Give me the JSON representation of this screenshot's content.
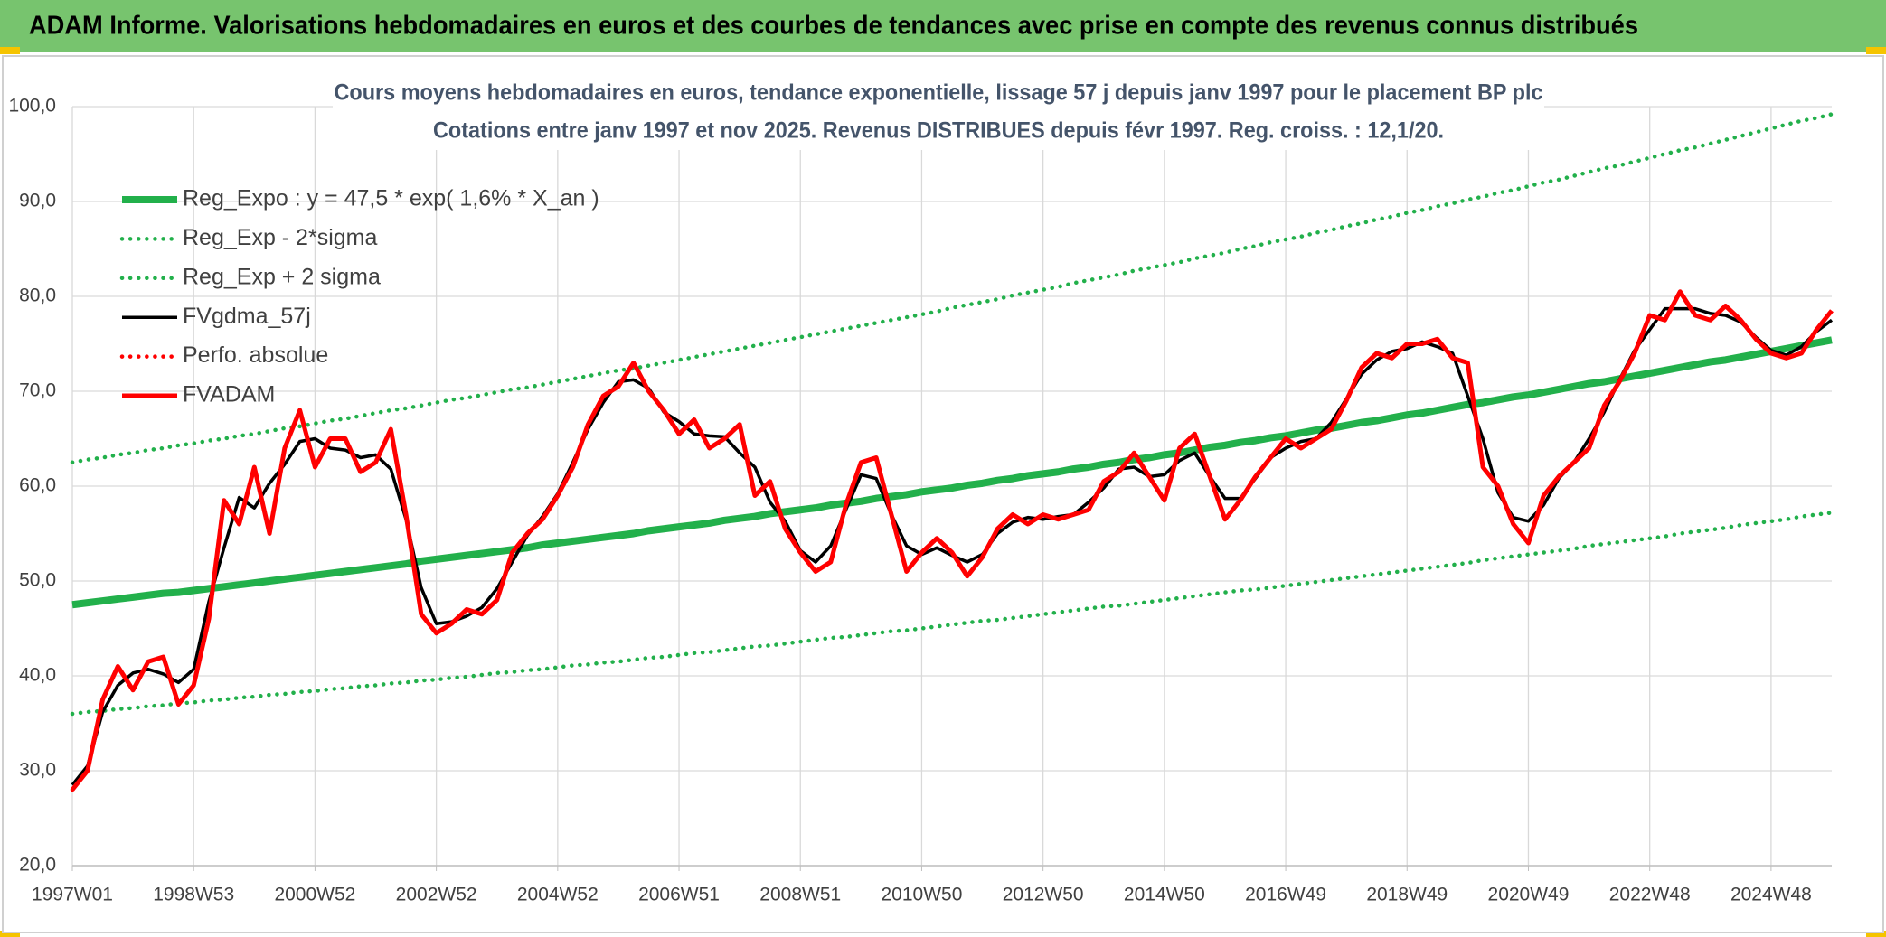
{
  "header": {
    "title": "ADAM Informe. Valorisations hebdomadaires en euros et des courbes de tendances avec prise en compte des revenus connus distribués"
  },
  "chart_data": {
    "type": "line",
    "title": "Cours moyens hebdomadaires en euros, tendance exponentielle, lissage 57 j depuis janv 1997 pour le placement BP plc",
    "subtitle": "Cotations entre janv 1997 et nov 2025. Revenus DISTRIBUES depuis févr 1997. Reg. croiss. : 12,1/20.",
    "categories": [
      "1997W01",
      null,
      null,
      null,
      null,
      null,
      null,
      null,
      "1998W53",
      null,
      null,
      null,
      null,
      null,
      null,
      null,
      "2000W52",
      null,
      null,
      null,
      null,
      null,
      null,
      null,
      "2002W52",
      null,
      null,
      null,
      null,
      null,
      null,
      null,
      "2004W52",
      null,
      null,
      null,
      null,
      null,
      null,
      null,
      "2006W51",
      null,
      null,
      null,
      null,
      null,
      null,
      null,
      "2008W51",
      null,
      null,
      null,
      null,
      null,
      null,
      null,
      "2010W50",
      null,
      null,
      null,
      null,
      null,
      null,
      null,
      "2012W50",
      null,
      null,
      null,
      null,
      null,
      null,
      null,
      "2014W50",
      null,
      null,
      null,
      null,
      null,
      null,
      null,
      "2016W49",
      null,
      null,
      null,
      null,
      null,
      null,
      null,
      "2018W49",
      null,
      null,
      null,
      null,
      null,
      null,
      null,
      "2020W49",
      null,
      null,
      null,
      null,
      null,
      null,
      null,
      "2022W48",
      null,
      null,
      null,
      null,
      null,
      null,
      null,
      "2024W48",
      null,
      null,
      null,
      null
    ],
    "ylim": [
      20,
      100
    ],
    "yticks": [
      {
        "value": 20,
        "label": "20,0"
      },
      {
        "value": 30,
        "label": "30,0"
      },
      {
        "value": 40,
        "label": "40,0"
      },
      {
        "value": 50,
        "label": "50,0"
      },
      {
        "value": 60,
        "label": "60,0"
      },
      {
        "value": 70,
        "label": "70,0"
      },
      {
        "value": 80,
        "label": "80,0"
      },
      {
        "value": 90,
        "label": "90,0"
      },
      {
        "value": 100,
        "label": "100,0"
      }
    ],
    "grid": true,
    "legend": "top-left",
    "series": [
      {
        "name": "Reg_Expo : y = 47,5 * exp( 1,6% *  X_an )",
        "color": "#22b04b",
        "style": "solid",
        "values": [
          47.5,
          47.7,
          47.9,
          48.1,
          48.3,
          48.5,
          48.7,
          48.8,
          49.0,
          49.2,
          49.4,
          49.6,
          49.8,
          50.0,
          50.2,
          50.4,
          50.6,
          50.8,
          51.0,
          51.2,
          51.4,
          51.6,
          51.8,
          52.1,
          52.3,
          52.5,
          52.7,
          52.9,
          53.1,
          53.3,
          53.5,
          53.8,
          54.0,
          54.2,
          54.4,
          54.6,
          54.8,
          55.0,
          55.3,
          55.5,
          55.7,
          55.9,
          56.1,
          56.4,
          56.6,
          56.8,
          57.1,
          57.3,
          57.5,
          57.7,
          58.0,
          58.2,
          58.4,
          58.7,
          58.9,
          59.1,
          59.4,
          59.6,
          59.8,
          60.1,
          60.3,
          60.6,
          60.8,
          61.1,
          61.3,
          61.5,
          61.8,
          62.0,
          62.3,
          62.5,
          62.8,
          63.0,
          63.3,
          63.5,
          63.8,
          64.1,
          64.3,
          64.6,
          64.8,
          65.1,
          65.3,
          65.6,
          65.9,
          66.1,
          66.4,
          66.7,
          66.9,
          67.2,
          67.5,
          67.7,
          68.0,
          68.3,
          68.6,
          68.8,
          69.1,
          69.4,
          69.6,
          69.9,
          70.2,
          70.5,
          70.8,
          71.0,
          71.3,
          71.6,
          71.9,
          72.2,
          72.5,
          72.8,
          73.1,
          73.3,
          73.6,
          73.9,
          74.2,
          74.5,
          74.8,
          75.1,
          75.4
        ]
      },
      {
        "name": "Reg_Exp - 2*sigma",
        "color": "#22b04b",
        "style": "dotted",
        "values": [
          36.0,
          36.2,
          36.3,
          36.5,
          36.6,
          36.8,
          36.9,
          37.1,
          37.2,
          37.4,
          37.5,
          37.7,
          37.8,
          38.0,
          38.1,
          38.3,
          38.4,
          38.6,
          38.7,
          38.9,
          39.0,
          39.2,
          39.3,
          39.5,
          39.6,
          39.8,
          39.9,
          40.1,
          40.3,
          40.4,
          40.6,
          40.7,
          40.9,
          41.1,
          41.2,
          41.4,
          41.5,
          41.7,
          41.9,
          42.0,
          42.2,
          42.4,
          42.5,
          42.7,
          42.9,
          43.1,
          43.2,
          43.4,
          43.6,
          43.8,
          44.0,
          44.1,
          44.3,
          44.5,
          44.7,
          44.8,
          45.0,
          45.2,
          45.4,
          45.6,
          45.8,
          45.9,
          46.1,
          46.3,
          46.5,
          46.7,
          46.9,
          47.1,
          47.3,
          47.4,
          47.6,
          47.8,
          48.0,
          48.2,
          48.4,
          48.6,
          48.8,
          49.0,
          49.1,
          49.3,
          49.5,
          49.7,
          49.9,
          50.1,
          50.3,
          50.5,
          50.7,
          50.9,
          51.1,
          51.3,
          51.5,
          51.7,
          51.9,
          52.2,
          52.4,
          52.6,
          52.8,
          53.0,
          53.2,
          53.4,
          53.7,
          53.9,
          54.1,
          54.3,
          54.5,
          54.7,
          55.0,
          55.2,
          55.4,
          55.6,
          55.9,
          56.1,
          56.3,
          56.5,
          56.8,
          57.0,
          57.2
        ]
      },
      {
        "name": "Reg_Exp + 2 sigma",
        "color": "#22b04b",
        "style": "dotted",
        "values": [
          62.5,
          62.8,
          63.0,
          63.3,
          63.5,
          63.8,
          64.0,
          64.3,
          64.5,
          64.8,
          65.0,
          65.3,
          65.5,
          65.8,
          66.1,
          66.3,
          66.6,
          66.9,
          67.1,
          67.4,
          67.7,
          68.0,
          68.2,
          68.5,
          68.8,
          69.1,
          69.3,
          69.6,
          69.9,
          70.2,
          70.4,
          70.7,
          71.0,
          71.3,
          71.6,
          71.9,
          72.2,
          72.4,
          72.7,
          73.0,
          73.3,
          73.6,
          73.9,
          74.2,
          74.5,
          74.8,
          75.1,
          75.4,
          75.7,
          76.0,
          76.3,
          76.6,
          76.9,
          77.2,
          77.5,
          77.8,
          78.1,
          78.4,
          78.8,
          79.1,
          79.4,
          79.7,
          80.1,
          80.4,
          80.7,
          81.0,
          81.4,
          81.7,
          82.0,
          82.3,
          82.7,
          83.0,
          83.3,
          83.6,
          84.0,
          84.3,
          84.6,
          85.0,
          85.3,
          85.7,
          86.0,
          86.3,
          86.7,
          87.0,
          87.4,
          87.7,
          88.1,
          88.4,
          88.8,
          89.1,
          89.5,
          89.8,
          90.2,
          90.5,
          90.9,
          91.2,
          91.6,
          92.0,
          92.3,
          92.7,
          93.1,
          93.5,
          93.8,
          94.2,
          94.6,
          95.0,
          95.4,
          95.7,
          96.1,
          96.5,
          96.9,
          97.3,
          97.7,
          98.1,
          98.5,
          98.8,
          99.2
        ]
      },
      {
        "name": "FVgdma_57j",
        "color": "#000000",
        "style": "solid",
        "values": [
          28.5,
          30.5,
          36.2,
          39.0,
          40.3,
          40.7,
          40.2,
          39.3,
          40.7,
          47.8,
          53.5,
          58.8,
          57.7,
          60.3,
          62.3,
          64.7,
          65.0,
          64.0,
          63.8,
          63.0,
          63.3,
          61.8,
          56.5,
          49.3,
          45.5,
          45.7,
          46.3,
          47.2,
          49.2,
          52.0,
          54.8,
          56.8,
          59.2,
          62.5,
          66.0,
          68.8,
          71.0,
          71.2,
          70.3,
          67.8,
          66.8,
          65.5,
          65.3,
          65.2,
          63.5,
          62.0,
          58.3,
          56.3,
          53.2,
          52.0,
          53.7,
          57.5,
          61.2,
          60.8,
          57.0,
          53.7,
          52.8,
          53.5,
          52.7,
          52.0,
          52.8,
          55.0,
          56.2,
          56.7,
          56.5,
          56.8,
          57.0,
          58.3,
          59.8,
          61.8,
          62.0,
          61.0,
          61.2,
          62.7,
          63.5,
          61.0,
          58.7,
          58.7,
          60.8,
          63.0,
          64.0,
          64.7,
          65.0,
          66.7,
          69.2,
          71.8,
          73.3,
          74.2,
          74.5,
          75.2,
          74.7,
          74.0,
          69.5,
          65.0,
          59.3,
          56.7,
          56.3,
          58.0,
          60.8,
          62.5,
          65.0,
          67.8,
          71.2,
          74.3,
          76.5,
          78.7,
          78.7,
          78.7,
          78.2,
          78.0,
          77.3,
          75.7,
          74.3,
          73.8,
          74.7,
          76.3,
          77.5
        ]
      },
      {
        "name": "Perfo. absolue",
        "color": "#ff0000",
        "style": "dotted",
        "values": [
          28.0,
          30.0,
          37.5,
          41.0,
          38.5,
          41.5,
          42.0,
          37.0,
          39.0,
          46.0,
          58.5,
          56.0,
          62.0,
          55.0,
          64.0,
          68.0,
          62.0,
          65.0,
          65.0,
          61.5,
          62.5,
          66.0,
          57.0,
          46.5,
          44.5,
          45.5,
          47.0,
          46.5,
          48.0,
          53.0,
          55.0,
          56.5,
          59.0,
          62.0,
          66.5,
          69.5,
          70.5,
          73.0,
          70.0,
          68.0,
          65.5,
          67.0,
          64.0,
          65.0,
          66.5,
          59.0,
          60.5,
          55.5,
          53.0,
          51.0,
          52.0,
          58.0,
          62.5,
          63.0,
          57.0,
          51.0,
          53.0,
          54.5,
          53.0,
          50.5,
          52.5,
          55.5,
          57.0,
          56.0,
          57.0,
          56.5,
          57.0,
          57.5,
          60.5,
          61.5,
          63.5,
          61.0,
          58.5,
          64.0,
          65.5,
          61.0,
          56.5,
          58.5,
          61.0,
          63.0,
          65.0,
          64.0,
          65.0,
          66.0,
          69.0,
          72.5,
          74.0,
          73.5,
          75.0,
          75.0,
          75.5,
          73.5,
          73.0,
          62.0,
          60.0,
          56.0,
          54.0,
          59.0,
          61.0,
          62.5,
          64.0,
          68.5,
          71.0,
          74.0,
          78.0,
          77.5,
          80.5,
          78.0,
          77.5,
          79.0,
          77.5,
          75.5,
          74.0,
          73.5,
          74.0,
          76.5,
          78.5
        ]
      },
      {
        "name": "FVADAM",
        "color": "#ff0000",
        "style": "solid",
        "values": [
          28.0,
          30.0,
          37.5,
          41.0,
          38.5,
          41.5,
          42.0,
          37.0,
          39.0,
          46.0,
          58.5,
          56.0,
          62.0,
          55.0,
          64.0,
          68.0,
          62.0,
          65.0,
          65.0,
          61.5,
          62.5,
          66.0,
          57.0,
          46.5,
          44.5,
          45.5,
          47.0,
          46.5,
          48.0,
          53.0,
          55.0,
          56.5,
          59.0,
          62.0,
          66.5,
          69.5,
          70.5,
          73.0,
          70.0,
          68.0,
          65.5,
          67.0,
          64.0,
          65.0,
          66.5,
          59.0,
          60.5,
          55.5,
          53.0,
          51.0,
          52.0,
          58.0,
          62.5,
          63.0,
          57.0,
          51.0,
          53.0,
          54.5,
          53.0,
          50.5,
          52.5,
          55.5,
          57.0,
          56.0,
          57.0,
          56.5,
          57.0,
          57.5,
          60.5,
          61.5,
          63.5,
          61.0,
          58.5,
          64.0,
          65.5,
          61.0,
          56.5,
          58.5,
          61.0,
          63.0,
          65.0,
          64.0,
          65.0,
          66.0,
          69.0,
          72.5,
          74.0,
          73.5,
          75.0,
          75.0,
          75.5,
          73.5,
          73.0,
          62.0,
          60.0,
          56.0,
          54.0,
          59.0,
          61.0,
          62.5,
          64.0,
          68.5,
          71.0,
          74.0,
          78.0,
          77.5,
          80.5,
          78.0,
          77.5,
          79.0,
          77.5,
          75.5,
          74.0,
          73.5,
          74.0,
          76.5,
          78.5
        ]
      }
    ]
  }
}
